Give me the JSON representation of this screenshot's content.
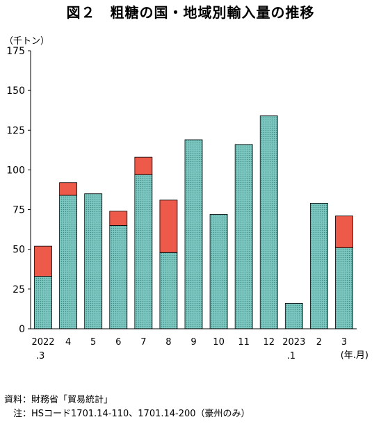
{
  "title": "図２　粗糖の国・地域別輸入量の推移",
  "unit_label": "（千トン）",
  "x_unit_label": "(年.月)",
  "notes": [
    "資料：財務省「貿易統計」",
    "　注：HSコード1701.14-110、1701.14-200（豪州のみ）"
  ],
  "colors": {
    "lower_series_fill": "#7fc8c2",
    "lower_series_dot": "#3a8c86",
    "upper_series_fill": "#ee5a4a",
    "axis": "#000000"
  },
  "chart_data": {
    "type": "bar",
    "stacked": true,
    "categories": [
      {
        "main": "2022",
        "sub": ".3"
      },
      {
        "main": "4",
        "sub": ""
      },
      {
        "main": "5",
        "sub": ""
      },
      {
        "main": "6",
        "sub": ""
      },
      {
        "main": "7",
        "sub": ""
      },
      {
        "main": "8",
        "sub": ""
      },
      {
        "main": "9",
        "sub": ""
      },
      {
        "main": "10",
        "sub": ""
      },
      {
        "main": "11",
        "sub": ""
      },
      {
        "main": "12",
        "sub": ""
      },
      {
        "main": "2023",
        "sub": ".1"
      },
      {
        "main": "2",
        "sub": ""
      },
      {
        "main": "3",
        "sub": ""
      }
    ],
    "series": [
      {
        "values": [
          33,
          84,
          85,
          65,
          97,
          48,
          119,
          72,
          116,
          134,
          16,
          79,
          51
        ]
      },
      {
        "values": [
          19,
          8,
          0,
          9,
          11,
          33,
          0,
          0,
          0,
          0,
          0,
          0,
          20
        ]
      }
    ],
    "yticks": [
      0,
      25,
      50,
      75,
      100,
      125,
      150,
      175
    ],
    "ylim": [
      0,
      175
    ],
    "grid": false,
    "legend": "none"
  }
}
